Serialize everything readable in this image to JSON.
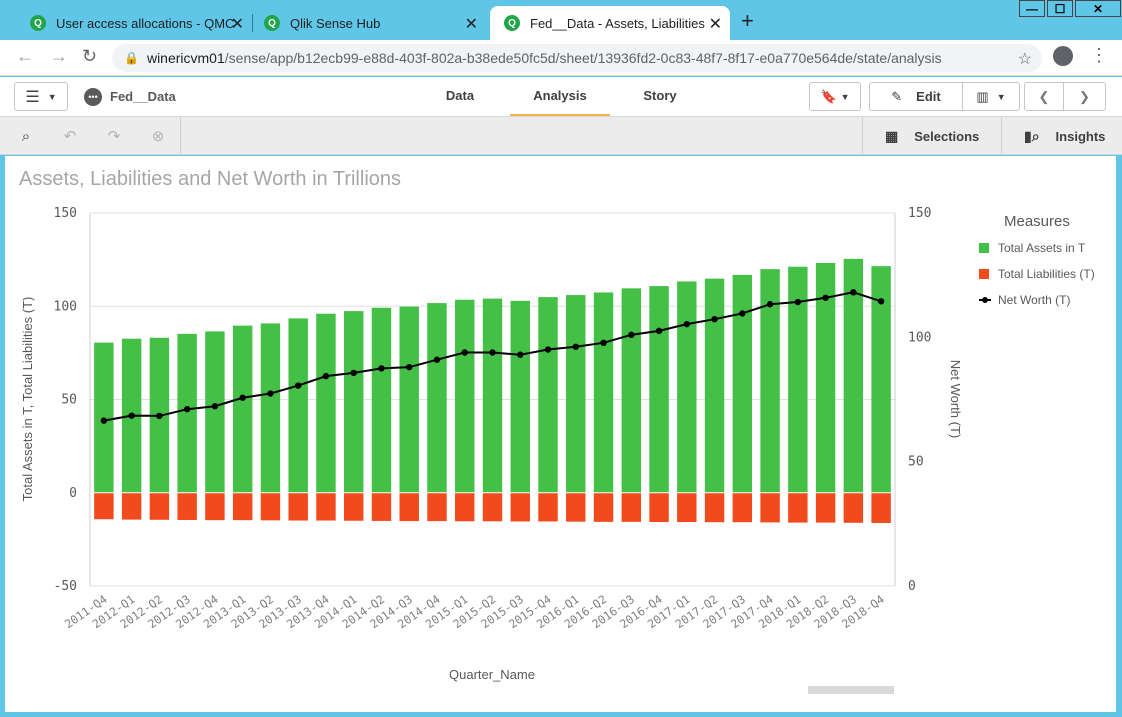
{
  "browser": {
    "tabs": [
      {
        "title": "User access allocations - QMC",
        "favicon": "qlik-logo"
      },
      {
        "title": "Qlik Sense Hub",
        "favicon": "qlik-logo"
      },
      {
        "title": "Fed__Data - Assets, Liabilities and",
        "favicon": "qlik-logo",
        "active": true
      }
    ],
    "url_host": "winericvm01",
    "url_path": "/sense/app/b12ecb99-e88d-403f-802a-b38ede50fc5d/sheet/13936fd2-0c83-48f7-8f17-e0a770e564de/state/analysis"
  },
  "header": {
    "app_name": "Fed__Data",
    "tabs": [
      "Data",
      "Analysis",
      "Story"
    ],
    "active_tab": "Analysis",
    "edit_label": "Edit"
  },
  "toolbar": {
    "selections_label": "Selections",
    "insights_label": "Insights"
  },
  "chart": {
    "title": "Assets, Liabilities and Net Worth in Trillions",
    "legend_title": "Measures",
    "legend": [
      "Total Assets in T",
      "Total Liabilities (T)",
      "Net Worth (T)"
    ]
  },
  "chart_data": {
    "type": "bar",
    "title": "Assets, Liabilities and Net Worth in Trillions",
    "xlabel": "Quarter_Name",
    "ylabel": "Total Assets in T, Total Liabilities (T)",
    "y2label": "Net Worth (T)",
    "ylim": [
      -50,
      150
    ],
    "y2lim": [
      0,
      150
    ],
    "yticks": [
      -50,
      0,
      50,
      100,
      150
    ],
    "y2ticks": [
      0,
      50,
      100,
      150
    ],
    "legend_position": "right",
    "colors": {
      "assets": "#44c047",
      "liabilities": "#f04a1d",
      "net_worth": "#000000"
    },
    "categories": [
      "2011-Q4",
      "2012-Q1",
      "2012-Q2",
      "2012-Q3",
      "2012-Q4",
      "2013-Q1",
      "2013-Q2",
      "2013-Q3",
      "2013-Q4",
      "2014-Q1",
      "2014-Q2",
      "2014-Q3",
      "2014-Q4",
      "2015-Q1",
      "2015-Q2",
      "2015-Q3",
      "2015-Q4",
      "2016-Q1",
      "2016-Q2",
      "2016-Q3",
      "2016-Q4",
      "2017-Q1",
      "2017-Q2",
      "2017-Q3",
      "2017-Q4",
      "2018-Q1",
      "2018-Q2",
      "2018-Q3",
      "2018-Q4"
    ],
    "series": [
      {
        "name": "Total Assets in T",
        "axis": "left",
        "type": "bar",
        "values": [
          80.5,
          82.6,
          83.1,
          85.2,
          86.5,
          89.6,
          90.8,
          93.5,
          96.0,
          97.4,
          99.2,
          99.8,
          101.7,
          103.5,
          104.1,
          102.9,
          104.9,
          106.0,
          107.4,
          109.6,
          110.8,
          113.3,
          114.8,
          116.8,
          119.9,
          121.2,
          123.2,
          125.4,
          121.5
        ]
      },
      {
        "name": "Total Liabilities (T)",
        "axis": "left",
        "type": "bar",
        "values": [
          -14.2,
          -14.4,
          -14.5,
          -14.6,
          -14.7,
          -14.7,
          -14.8,
          -14.9,
          -14.9,
          -15.0,
          -15.1,
          -15.2,
          -15.2,
          -15.3,
          -15.3,
          -15.4,
          -15.4,
          -15.5,
          -15.6,
          -15.6,
          -15.7,
          -15.7,
          -15.8,
          -15.8,
          -15.9,
          -16.0,
          -16.0,
          -16.1,
          -16.2
        ]
      },
      {
        "name": "Net Worth (T)",
        "axis": "right",
        "type": "line",
        "values": [
          66.5,
          68.5,
          68.4,
          71.1,
          72.3,
          75.7,
          77.4,
          80.6,
          84.4,
          85.7,
          87.5,
          88.0,
          91.0,
          93.9,
          93.9,
          93.0,
          95.1,
          96.2,
          97.8,
          101.0,
          102.6,
          105.3,
          107.3,
          109.6,
          113.3,
          114.2,
          115.9,
          118.1,
          114.5
        ]
      }
    ]
  }
}
